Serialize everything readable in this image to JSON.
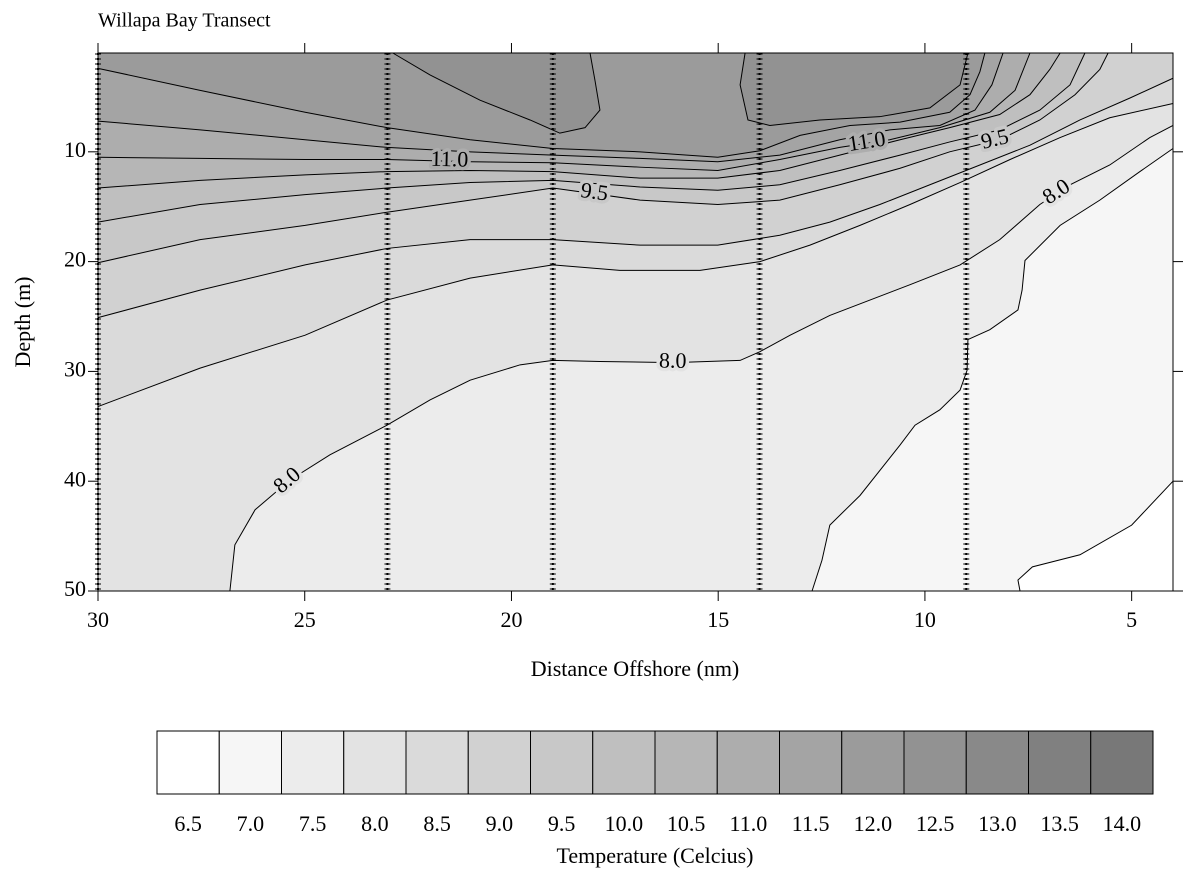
{
  "chart_data": {
    "type": "contour",
    "title": "Willapa Bay Transect",
    "x_label": "Distance Offshore (nm)",
    "y_label": "Depth (m)",
    "xlim": [
      30,
      4
    ],
    "ylim": [
      1,
      50
    ],
    "xticks": [
      30,
      25,
      20,
      15,
      10,
      5
    ],
    "yticks": [
      10,
      20,
      30,
      40,
      50
    ],
    "stations": [
      30,
      23,
      19,
      14,
      9
    ],
    "contours": [
      {
        "level": 7,
        "x": [
          7.7,
          7.75,
          7.4,
          6.25,
          5.0,
          4.0
        ],
        "y": [
          50,
          49,
          47.8,
          46.7,
          44.0,
          40.0
        ]
      },
      {
        "level": 7.5,
        "x": [
          12.73,
          12.49,
          12.3,
          11.57,
          10.6,
          10.24,
          9.64,
          9.15,
          8.98,
          8.96,
          8.43,
          7.75,
          7.65,
          7.58,
          6.73,
          5.77,
          4.8,
          4.0
        ],
        "y": [
          50,
          47.2,
          44.0,
          41.3,
          36.7,
          34.9,
          33.5,
          31.7,
          29.9,
          27.1,
          26.2,
          24.4,
          22.6,
          19.9,
          16.7,
          14.4,
          11.8,
          9.7
        ]
      },
      {
        "level": 8,
        "labels": [
          "8.0",
          "8.0",
          "8.0"
        ],
        "x": [
          26.81,
          26.69,
          26.2,
          25.36,
          24.39,
          23.01,
          21.97,
          21.0,
          19.79,
          19.0,
          17.86,
          16.07,
          14.47,
          13.99,
          13.26,
          12.3,
          11.33,
          10.36,
          9.15,
          8.19,
          7.22,
          6.49,
          5.53,
          4.56,
          4.0
        ],
        "y": [
          50,
          45.8,
          42.6,
          39.9,
          37.6,
          34.9,
          32.6,
          30.8,
          29.4,
          29.0,
          29.1,
          29.2,
          29.0,
          28.2,
          26.7,
          24.9,
          23.5,
          22.1,
          20.3,
          18.0,
          14.8,
          13.0,
          11.2,
          8.7,
          7.6
        ]
      },
      {
        "level": 8.5,
        "x": [
          30,
          27.53,
          24.99,
          23.01,
          21.0,
          19.0,
          17.38,
          15.44,
          13.99,
          12.78,
          11.57,
          10.36,
          9.15,
          7.94,
          6.73,
          5.53,
          4.0
        ],
        "y": [
          33.2,
          29.7,
          26.7,
          23.5,
          21.5,
          20.3,
          20.8,
          20.8,
          20.0,
          18.5,
          16.7,
          14.8,
          12.8,
          10.7,
          8.7,
          6.9,
          5.6
        ]
      },
      {
        "level": 9,
        "x": [
          30,
          27.53,
          24.99,
          23.01,
          21.0,
          19.0,
          16.89,
          15.01,
          13.51,
          12.3,
          11.09,
          9.88,
          8.67,
          7.46,
          6.25,
          5.04,
          4.0
        ],
        "y": [
          25.1,
          22.6,
          20.3,
          18.8,
          18.0,
          18.0,
          18.5,
          18.5,
          17.6,
          16.4,
          14.8,
          13.0,
          11.2,
          9.4,
          7.1,
          5.1,
          3.3
        ]
      },
      {
        "level": 9.5,
        "labels": [
          "9.5",
          "9.5"
        ],
        "x": [
          30,
          27.53,
          24.99,
          23.01,
          21.0,
          19.0,
          16.89,
          15.01,
          13.51,
          12.06,
          10.6,
          9.4,
          8.19,
          7.22,
          6.37,
          5.77,
          5.57
        ],
        "y": [
          20.1,
          18.0,
          16.7,
          15.5,
          14.4,
          13.3,
          14.4,
          14.8,
          14.4,
          13.0,
          11.5,
          10.0,
          8.9,
          7.1,
          4.8,
          2.5,
          1
        ]
      },
      {
        "level": 10,
        "x": [
          30,
          27.53,
          24.99,
          23.01,
          21.0,
          19.0,
          16.89,
          15.01,
          13.51,
          12.06,
          10.6,
          9.4,
          8.19,
          7.22,
          6.49,
          6.13
        ],
        "y": [
          16.4,
          14.8,
          13.9,
          13.3,
          12.8,
          12.6,
          13.2,
          13.5,
          13.0,
          11.7,
          10.3,
          9.1,
          8.0,
          6.2,
          3.9,
          1
        ]
      },
      {
        "level": 10.5,
        "x": [
          30,
          27.53,
          24.99,
          23.01,
          21.0,
          19.0,
          16.89,
          15.01,
          13.51,
          12.06,
          10.6,
          9.4,
          8.19,
          7.46,
          6.98,
          6.73
        ],
        "y": [
          13.3,
          12.6,
          12.1,
          11.8,
          11.7,
          11.8,
          12.4,
          12.4,
          11.7,
          10.3,
          8.9,
          7.8,
          6.6,
          4.8,
          2.5,
          1
        ]
      },
      {
        "level": 11,
        "labels": [
          "11.0",
          "11.0"
        ],
        "x": [
          30,
          27.53,
          24.99,
          23.01,
          21.0,
          19.0,
          16.89,
          15.01,
          13.51,
          12.06,
          10.85,
          9.64,
          8.43,
          7.82,
          7.46
        ],
        "y": [
          10.5,
          10.6,
          10.7,
          10.7,
          10.9,
          11.0,
          11.4,
          11.7,
          10.7,
          9.6,
          8.9,
          7.8,
          6.4,
          4.4,
          1
        ]
      },
      {
        "level": 11.5,
        "x": [
          30,
          27.53,
          24.99,
          23.01,
          21.0,
          19.0,
          16.89,
          15.01,
          13.51,
          12.06,
          10.85,
          9.64,
          8.79,
          8.38,
          8.11
        ],
        "y": [
          7.2,
          8.0,
          8.9,
          9.6,
          10.0,
          10.3,
          10.6,
          10.9,
          10.3,
          8.9,
          8.0,
          7.6,
          6.2,
          3.9,
          1
        ]
      },
      {
        "level": 12,
        "x": [
          30,
          27.53,
          24.99,
          23.01,
          21.0,
          19.0,
          16.89,
          15.01,
          13.99,
          13.02,
          11.81,
          10.6,
          9.4,
          8.91,
          8.67,
          8.55
        ],
        "y": [
          2.4,
          4.4,
          6.4,
          7.8,
          8.9,
          9.7,
          10.0,
          10.5,
          9.9,
          8.5,
          7.6,
          7.3,
          6.4,
          4.8,
          2.7,
          1
        ]
      },
      {
        "level": 12.5,
        "x": [
          22.87,
          21.97,
          20.76,
          19.55,
          18.83,
          18.22,
          17.86,
          17.98,
          18.1
        ],
        "y": [
          1,
          3.0,
          5.3,
          7.1,
          8.3,
          7.8,
          6.2,
          3.5,
          1
        ]
      },
      {
        "level": 12.5,
        "x": [
          14.35,
          14.47,
          14.28,
          13.75,
          12.54,
          11.09,
          9.88,
          9.15,
          8.96
        ],
        "y": [
          1,
          3.9,
          7.1,
          7.6,
          7.1,
          6.8,
          6.0,
          3.9,
          1
        ]
      }
    ],
    "colorbar": {
      "title": "Temperature (Celcius)",
      "ticks": [
        6.5,
        {
          "value": 7,
          "label": "7.0"
        },
        7.5,
        {
          "value": 8,
          "label": "8.0"
        },
        8.5,
        {
          "value": 9,
          "label": "9.0"
        },
        9.5,
        {
          "value": 10,
          "label": "10.0"
        },
        10.5,
        {
          "value": 11,
          "label": "11.0"
        },
        11.5,
        {
          "value": 12,
          "label": "12.0"
        },
        12.5,
        {
          "value": 13,
          "label": "13.0"
        },
        13.5,
        {
          "value": 14,
          "label": "14.0"
        }
      ],
      "colors": [
        "#ffffff",
        "#f6f6f6",
        "#ececec",
        "#e3e3e3",
        "#dadada",
        "#d1d1d1",
        "#c8c8c8",
        "#bfbfbf",
        "#b6b6b6",
        "#adadad",
        "#a4a4a4",
        "#9b9b9b",
        "#929292",
        "#898989",
        "#808080",
        "#787878"
      ]
    }
  }
}
